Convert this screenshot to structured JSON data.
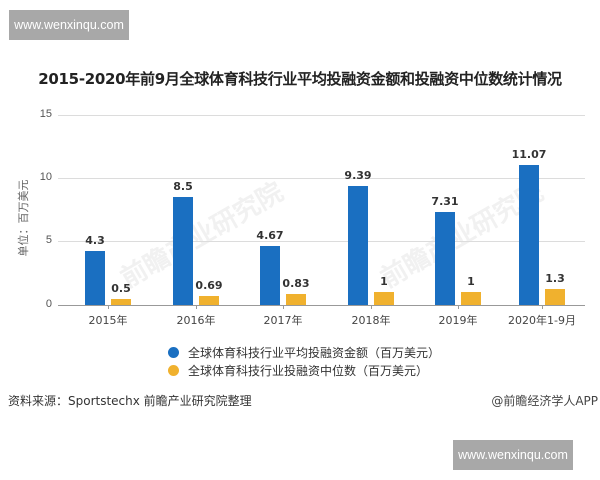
{
  "watermarks": {
    "top": "www.wenxinqu.com",
    "bottom": "www.wenxinqu.com",
    "background": "前瞻产业研究院"
  },
  "header": {
    "title": "2015-2020年前9月全球体育科技行业平均投融资金额和投融资中位数统计情况"
  },
  "axis": {
    "ylabel": "单位：百万美元",
    "yticks": [
      "15",
      "10",
      "5",
      "0"
    ]
  },
  "legend": [
    {
      "label": "全球体育科技行业平均投融资金额（百万美元）",
      "color": "#1a6fc1"
    },
    {
      "label": "全球体育科技行业投融资中位数（百万美元）",
      "color": "#f0b12e"
    }
  ],
  "footer": {
    "source": "资料来源：Sportstechx 前瞻产业研究院整理",
    "credit": "@前瞻经济学人APP"
  },
  "chart_data": {
    "type": "bar",
    "title": "2015-2020年前9月全球体育科技行业平均投融资金额和投融资中位数统计情况",
    "categories": [
      "2015年",
      "2016年",
      "2017年",
      "2018年",
      "2019年",
      "2020年1-9月"
    ],
    "series": [
      {
        "name": "全球体育科技行业平均投融资金额（百万美元）",
        "color": "#1a6fc1",
        "values": [
          4.3,
          8.5,
          4.67,
          9.39,
          7.31,
          11.07
        ],
        "labels": [
          "4.3",
          "8.5",
          "4.67",
          "9.39",
          "7.31",
          "11.07"
        ]
      },
      {
        "name": "全球体育科技行业投融资中位数（百万美元）",
        "color": "#f0b12e",
        "values": [
          0.5,
          0.69,
          0.83,
          1,
          1,
          1.3
        ],
        "labels": [
          "0.5",
          "0.69",
          "0.83",
          "1",
          "1",
          "1.3"
        ]
      }
    ],
    "xlabel": "",
    "ylabel": "单位：百万美元",
    "ylim": [
      0,
      15
    ],
    "yticks": [
      0,
      5,
      10,
      15
    ],
    "grid": true,
    "legend_position": "bottom"
  }
}
